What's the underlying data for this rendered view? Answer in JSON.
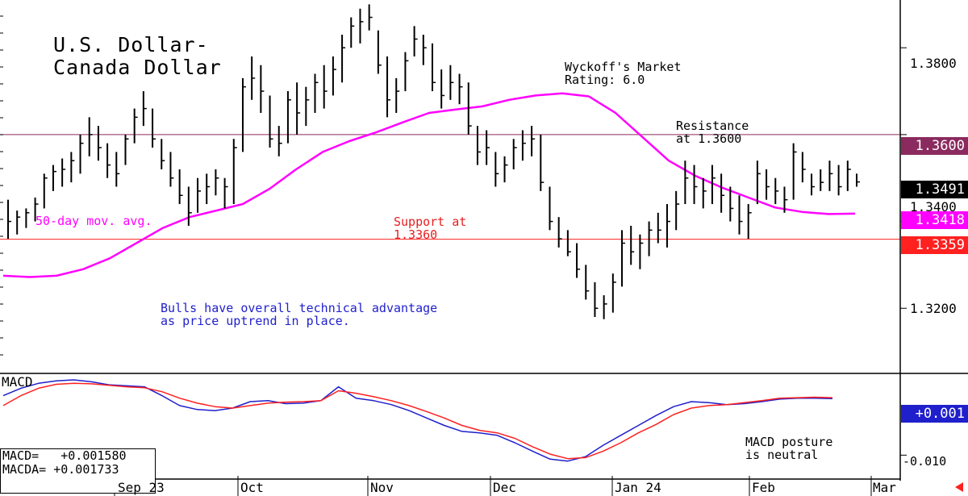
{
  "chart_data": [
    {
      "type": "bar",
      "subtype": "ohlc",
      "title": "U.S. Dollar-\nCanada Dollar",
      "rating": "Wyckoff's Market\nRating: 6.0",
      "y_ticks": [
        1.32,
        1.34,
        1.36,
        1.38
      ],
      "y_tick_labels": [
        "1.3200",
        "1.3400",
        "1.3600",
        "1.3800"
      ],
      "ylim": [
        1.305,
        1.391
      ],
      "x_labels": [
        "Sep 23",
        "Oct",
        "Nov",
        "Dec",
        "Jan 24",
        "Feb",
        "Mar"
      ],
      "resistance": {
        "value": 1.36,
        "label": "1.3600",
        "note": "Resistance\nat 1.3600",
        "color": "#8b2a5e"
      },
      "support": {
        "value": 1.3359,
        "label": "1.3359",
        "note": "Support at\n1.3360",
        "color": "#ff2020"
      },
      "last_price": {
        "value": 1.3491,
        "label": "1.3491"
      },
      "moving_average": {
        "name": "50-day mov. avg.",
        "last": 1.3418,
        "label": "1.3418",
        "color": "#ff00ff",
        "values": [
          1.3275,
          1.3272,
          1.3275,
          1.329,
          1.3315,
          1.335,
          1.3385,
          1.341,
          1.3425,
          1.344,
          1.3475,
          1.352,
          1.356,
          1.3585,
          1.3605,
          1.3628,
          1.365,
          1.3658,
          1.3665,
          1.368,
          1.369,
          1.3695,
          1.3688,
          1.365,
          1.3595,
          1.354,
          1.3505,
          1.3478,
          1.3455,
          1.3432,
          1.3422,
          1.3417,
          1.3418
        ]
      },
      "price_bars": [
        {
          "h": 1.345,
          "l": 1.336,
          "c": 1.34
        },
        {
          "h": 1.3425,
          "l": 1.337,
          "c": 1.341
        },
        {
          "h": 1.343,
          "l": 1.3385,
          "c": 1.342
        },
        {
          "h": 1.3455,
          "l": 1.34,
          "c": 1.344
        },
        {
          "h": 1.351,
          "l": 1.343,
          "c": 1.35
        },
        {
          "h": 1.353,
          "l": 1.347,
          "c": 1.3515
        },
        {
          "h": 1.3545,
          "l": 1.348,
          "c": 1.352
        },
        {
          "h": 1.356,
          "l": 1.349,
          "c": 1.354
        },
        {
          "h": 1.36,
          "l": 1.351,
          "c": 1.358
        },
        {
          "h": 1.364,
          "l": 1.355,
          "c": 1.36
        },
        {
          "h": 1.362,
          "l": 1.354,
          "c": 1.357
        },
        {
          "h": 1.358,
          "l": 1.35,
          "c": 1.353
        },
        {
          "h": 1.356,
          "l": 1.348,
          "c": 1.351
        },
        {
          "h": 1.36,
          "l": 1.353,
          "c": 1.359
        },
        {
          "h": 1.366,
          "l": 1.358,
          "c": 1.364
        },
        {
          "h": 1.37,
          "l": 1.362,
          "c": 1.366
        },
        {
          "h": 1.366,
          "l": 1.357,
          "c": 1.359
        },
        {
          "h": 1.359,
          "l": 1.352,
          "c": 1.354
        },
        {
          "h": 1.356,
          "l": 1.348,
          "c": 1.35
        },
        {
          "h": 1.352,
          "l": 1.344,
          "c": 1.346
        },
        {
          "h": 1.348,
          "l": 1.339,
          "c": 1.342
        },
        {
          "h": 1.35,
          "l": 1.342,
          "c": 1.347
        },
        {
          "h": 1.351,
          "l": 1.344,
          "c": 1.348
        },
        {
          "h": 1.352,
          "l": 1.346,
          "c": 1.35
        },
        {
          "h": 1.35,
          "l": 1.343,
          "c": 1.348
        },
        {
          "h": 1.359,
          "l": 1.344,
          "c": 1.357
        },
        {
          "h": 1.373,
          "l": 1.356,
          "c": 1.371
        },
        {
          "h": 1.378,
          "l": 1.368,
          "c": 1.373
        },
        {
          "h": 1.376,
          "l": 1.365,
          "c": 1.37
        },
        {
          "h": 1.369,
          "l": 1.357,
          "c": 1.359
        },
        {
          "h": 1.362,
          "l": 1.355,
          "c": 1.358
        },
        {
          "h": 1.37,
          "l": 1.358,
          "c": 1.368
        },
        {
          "h": 1.372,
          "l": 1.36,
          "c": 1.365
        },
        {
          "h": 1.371,
          "l": 1.362,
          "c": 1.368
        },
        {
          "h": 1.374,
          "l": 1.365,
          "c": 1.372
        },
        {
          "h": 1.376,
          "l": 1.366,
          "c": 1.37
        },
        {
          "h": 1.378,
          "l": 1.369,
          "c": 1.375
        },
        {
          "h": 1.383,
          "l": 1.372,
          "c": 1.38
        },
        {
          "h": 1.387,
          "l": 1.38,
          "c": 1.385
        },
        {
          "h": 1.389,
          "l": 1.381,
          "c": 1.386
        },
        {
          "h": 1.39,
          "l": 1.384,
          "c": 1.387
        },
        {
          "h": 1.384,
          "l": 1.374,
          "c": 1.376
        },
        {
          "h": 1.378,
          "l": 1.364,
          "c": 1.368
        },
        {
          "h": 1.373,
          "l": 1.365,
          "c": 1.37
        },
        {
          "h": 1.379,
          "l": 1.37,
          "c": 1.377
        },
        {
          "h": 1.385,
          "l": 1.378,
          "c": 1.382
        },
        {
          "h": 1.383,
          "l": 1.376,
          "c": 1.38
        },
        {
          "h": 1.381,
          "l": 1.37,
          "c": 1.372
        },
        {
          "h": 1.375,
          "l": 1.366,
          "c": 1.369
        },
        {
          "h": 1.376,
          "l": 1.368,
          "c": 1.372
        },
        {
          "h": 1.374,
          "l": 1.367,
          "c": 1.371
        },
        {
          "h": 1.372,
          "l": 1.36,
          "c": 1.362
        },
        {
          "h": 1.362,
          "l": 1.353,
          "c": 1.356
        },
        {
          "h": 1.361,
          "l": 1.353,
          "c": 1.357
        },
        {
          "h": 1.356,
          "l": 1.348,
          "c": 1.351
        },
        {
          "h": 1.355,
          "l": 1.349,
          "c": 1.353
        },
        {
          "h": 1.359,
          "l": 1.352,
          "c": 1.357
        },
        {
          "h": 1.361,
          "l": 1.354,
          "c": 1.358
        },
        {
          "h": 1.362,
          "l": 1.355,
          "c": 1.359
        },
        {
          "h": 1.36,
          "l": 1.347,
          "c": 1.349
        },
        {
          "h": 1.348,
          "l": 1.338,
          "c": 1.34
        },
        {
          "h": 1.341,
          "l": 1.334,
          "c": 1.336
        },
        {
          "h": 1.338,
          "l": 1.332,
          "c": 1.333
        },
        {
          "h": 1.335,
          "l": 1.327,
          "c": 1.329
        },
        {
          "h": 1.33,
          "l": 1.322,
          "c": 1.324
        },
        {
          "h": 1.326,
          "l": 1.318,
          "c": 1.32
        },
        {
          "h": 1.323,
          "l": 1.3175,
          "c": 1.321
        },
        {
          "h": 1.328,
          "l": 1.319,
          "c": 1.326
        },
        {
          "h": 1.338,
          "l": 1.325,
          "c": 1.335
        },
        {
          "h": 1.339,
          "l": 1.33,
          "c": 1.333
        },
        {
          "h": 1.337,
          "l": 1.329,
          "c": 1.335
        },
        {
          "h": 1.34,
          "l": 1.332,
          "c": 1.338
        },
        {
          "h": 1.342,
          "l": 1.335,
          "c": 1.338
        },
        {
          "h": 1.344,
          "l": 1.334,
          "c": 1.34
        },
        {
          "h": 1.347,
          "l": 1.338,
          "c": 1.344
        },
        {
          "h": 1.354,
          "l": 1.344,
          "c": 1.35
        },
        {
          "h": 1.353,
          "l": 1.344,
          "c": 1.348
        },
        {
          "h": 1.35,
          "l": 1.343,
          "c": 1.347
        },
        {
          "h": 1.353,
          "l": 1.344,
          "c": 1.35
        },
        {
          "h": 1.351,
          "l": 1.342,
          "c": 1.346
        },
        {
          "h": 1.348,
          "l": 1.34,
          "c": 1.343
        },
        {
          "h": 1.346,
          "l": 1.337,
          "c": 1.34
        },
        {
          "h": 1.344,
          "l": 1.336,
          "c": 1.342
        },
        {
          "h": 1.354,
          "l": 1.344,
          "c": 1.351
        },
        {
          "h": 1.352,
          "l": 1.345,
          "c": 1.348
        },
        {
          "h": 1.35,
          "l": 1.344,
          "c": 1.347
        },
        {
          "h": 1.348,
          "l": 1.342,
          "c": 1.345
        },
        {
          "h": 1.358,
          "l": 1.345,
          "c": 1.356
        },
        {
          "h": 1.356,
          "l": 1.349,
          "c": 1.352
        },
        {
          "h": 1.351,
          "l": 1.346,
          "c": 1.348
        },
        {
          "h": 1.352,
          "l": 1.347,
          "c": 1.349
        },
        {
          "h": 1.354,
          "l": 1.347,
          "c": 1.351
        },
        {
          "h": 1.353,
          "l": 1.346,
          "c": 1.348
        },
        {
          "h": 1.354,
          "l": 1.347,
          "c": 1.352
        },
        {
          "h": 1.351,
          "l": 1.348,
          "c": 1.3491
        }
      ]
    },
    {
      "type": "line",
      "title": "MACD",
      "y_ticks": [
        -0.01
      ],
      "y_tick_labels": [
        "-0.010"
      ],
      "ylim": [
        -0.0145,
        0.0065
      ],
      "last": {
        "value": 0.001,
        "label": "+0.001"
      },
      "readout": {
        "macd": "MACD=   +0.001580",
        "macda": "MACDA= +0.001733"
      },
      "note": "MACD posture\nis neutral",
      "series": [
        {
          "name": "MACD",
          "color": "#1f1fcc",
          "values": [
            0.002,
            0.0035,
            0.0045,
            0.005,
            0.0052,
            0.0048,
            0.0042,
            0.004,
            0.0038,
            0.002,
            0.0,
            -0.0008,
            -0.001,
            -0.0005,
            0.0008,
            0.001,
            0.0004,
            0.0005,
            0.001,
            0.0038,
            0.0015,
            0.001,
            0.0002,
            -0.001,
            -0.0025,
            -0.004,
            -0.0052,
            -0.0055,
            -0.006,
            -0.0075,
            -0.0092,
            -0.0108,
            -0.0112,
            -0.0103,
            -0.008,
            -0.006,
            -0.004,
            -0.002,
            -0.0002,
            0.0008,
            0.0006,
            0.0002,
            0.0004,
            0.0008,
            0.0013,
            0.0015,
            0.0015,
            0.0014
          ]
        },
        {
          "name": "MACDA",
          "color": "#ff2020",
          "values": [
            0.0,
            0.002,
            0.0035,
            0.0043,
            0.0045,
            0.0044,
            0.0041,
            0.0038,
            0.0036,
            0.0028,
            0.0015,
            0.0005,
            -0.0002,
            -0.0005,
            0.0,
            0.0005,
            0.0007,
            0.0008,
            0.001,
            0.003,
            0.0025,
            0.0018,
            0.001,
            0.0,
            -0.0012,
            -0.0025,
            -0.004,
            -0.005,
            -0.0055,
            -0.0066,
            -0.0083,
            -0.0098,
            -0.0107,
            -0.0105,
            -0.0092,
            -0.0075,
            -0.0055,
            -0.0038,
            -0.0018,
            -0.0005,
            0.0,
            0.0002,
            0.0006,
            0.001,
            0.0015,
            0.0016,
            0.0017,
            0.0016
          ]
        }
      ]
    }
  ],
  "annotations": {
    "ma_label": "50-day mov. avg.",
    "bulls_note": "Bulls have overall technical advantage\nas price uptrend in place."
  },
  "colors": {
    "magenta": "#ff00ff",
    "resistance": "#8b2a5e",
    "support": "#ff2020",
    "blue_text": "#1f1fcc",
    "red_text": "#e82020"
  }
}
